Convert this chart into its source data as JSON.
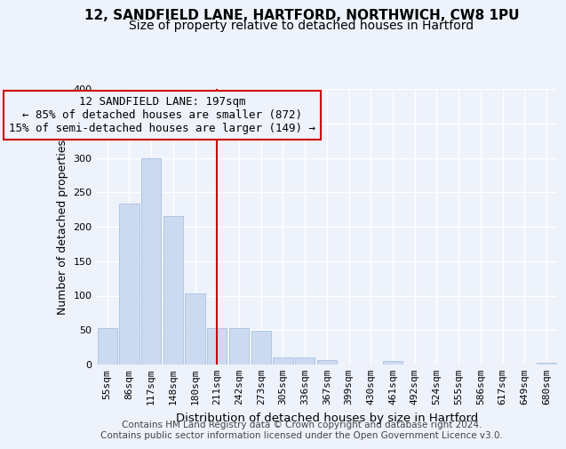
{
  "title1": "12, SANDFIELD LANE, HARTFORD, NORTHWICH, CW8 1PU",
  "title2": "Size of property relative to detached houses in Hartford",
  "xlabel": "Distribution of detached houses by size in Hartford",
  "ylabel": "Number of detached properties",
  "categories": [
    "55sqm",
    "86sqm",
    "117sqm",
    "148sqm",
    "180sqm",
    "211sqm",
    "242sqm",
    "273sqm",
    "305sqm",
    "336sqm",
    "367sqm",
    "399sqm",
    "430sqm",
    "461sqm",
    "492sqm",
    "524sqm",
    "555sqm",
    "586sqm",
    "617sqm",
    "649sqm",
    "680sqm"
  ],
  "values": [
    53,
    233,
    300,
    215,
    103,
    53,
    53,
    49,
    10,
    10,
    7,
    0,
    0,
    5,
    0,
    0,
    0,
    0,
    0,
    0,
    3
  ],
  "bar_color": "#ccdaf0",
  "bar_edge_color": "#a8c0e0",
  "vline_x": 5,
  "vline_color": "#cc0000",
  "annotation_line1": "12 SANDFIELD LANE: 197sqm",
  "annotation_line2": "← 85% of detached houses are smaller (872)",
  "annotation_line3": "15% of semi-detached houses are larger (149) →",
  "annotation_box_color": "#cc0000",
  "ylim": [
    0,
    400
  ],
  "yticks": [
    0,
    50,
    100,
    150,
    200,
    250,
    300,
    350,
    400
  ],
  "footer": "Contains HM Land Registry data © Crown copyright and database right 2024.\nContains public sector information licensed under the Open Government Licence v3.0.",
  "bg_color": "#eef2fb",
  "grid_color": "#ffffff",
  "title1_fontsize": 11,
  "title2_fontsize": 10,
  "axis_label_fontsize": 9,
  "tick_fontsize": 8,
  "footer_fontsize": 7.5,
  "annot_fontsize": 9
}
